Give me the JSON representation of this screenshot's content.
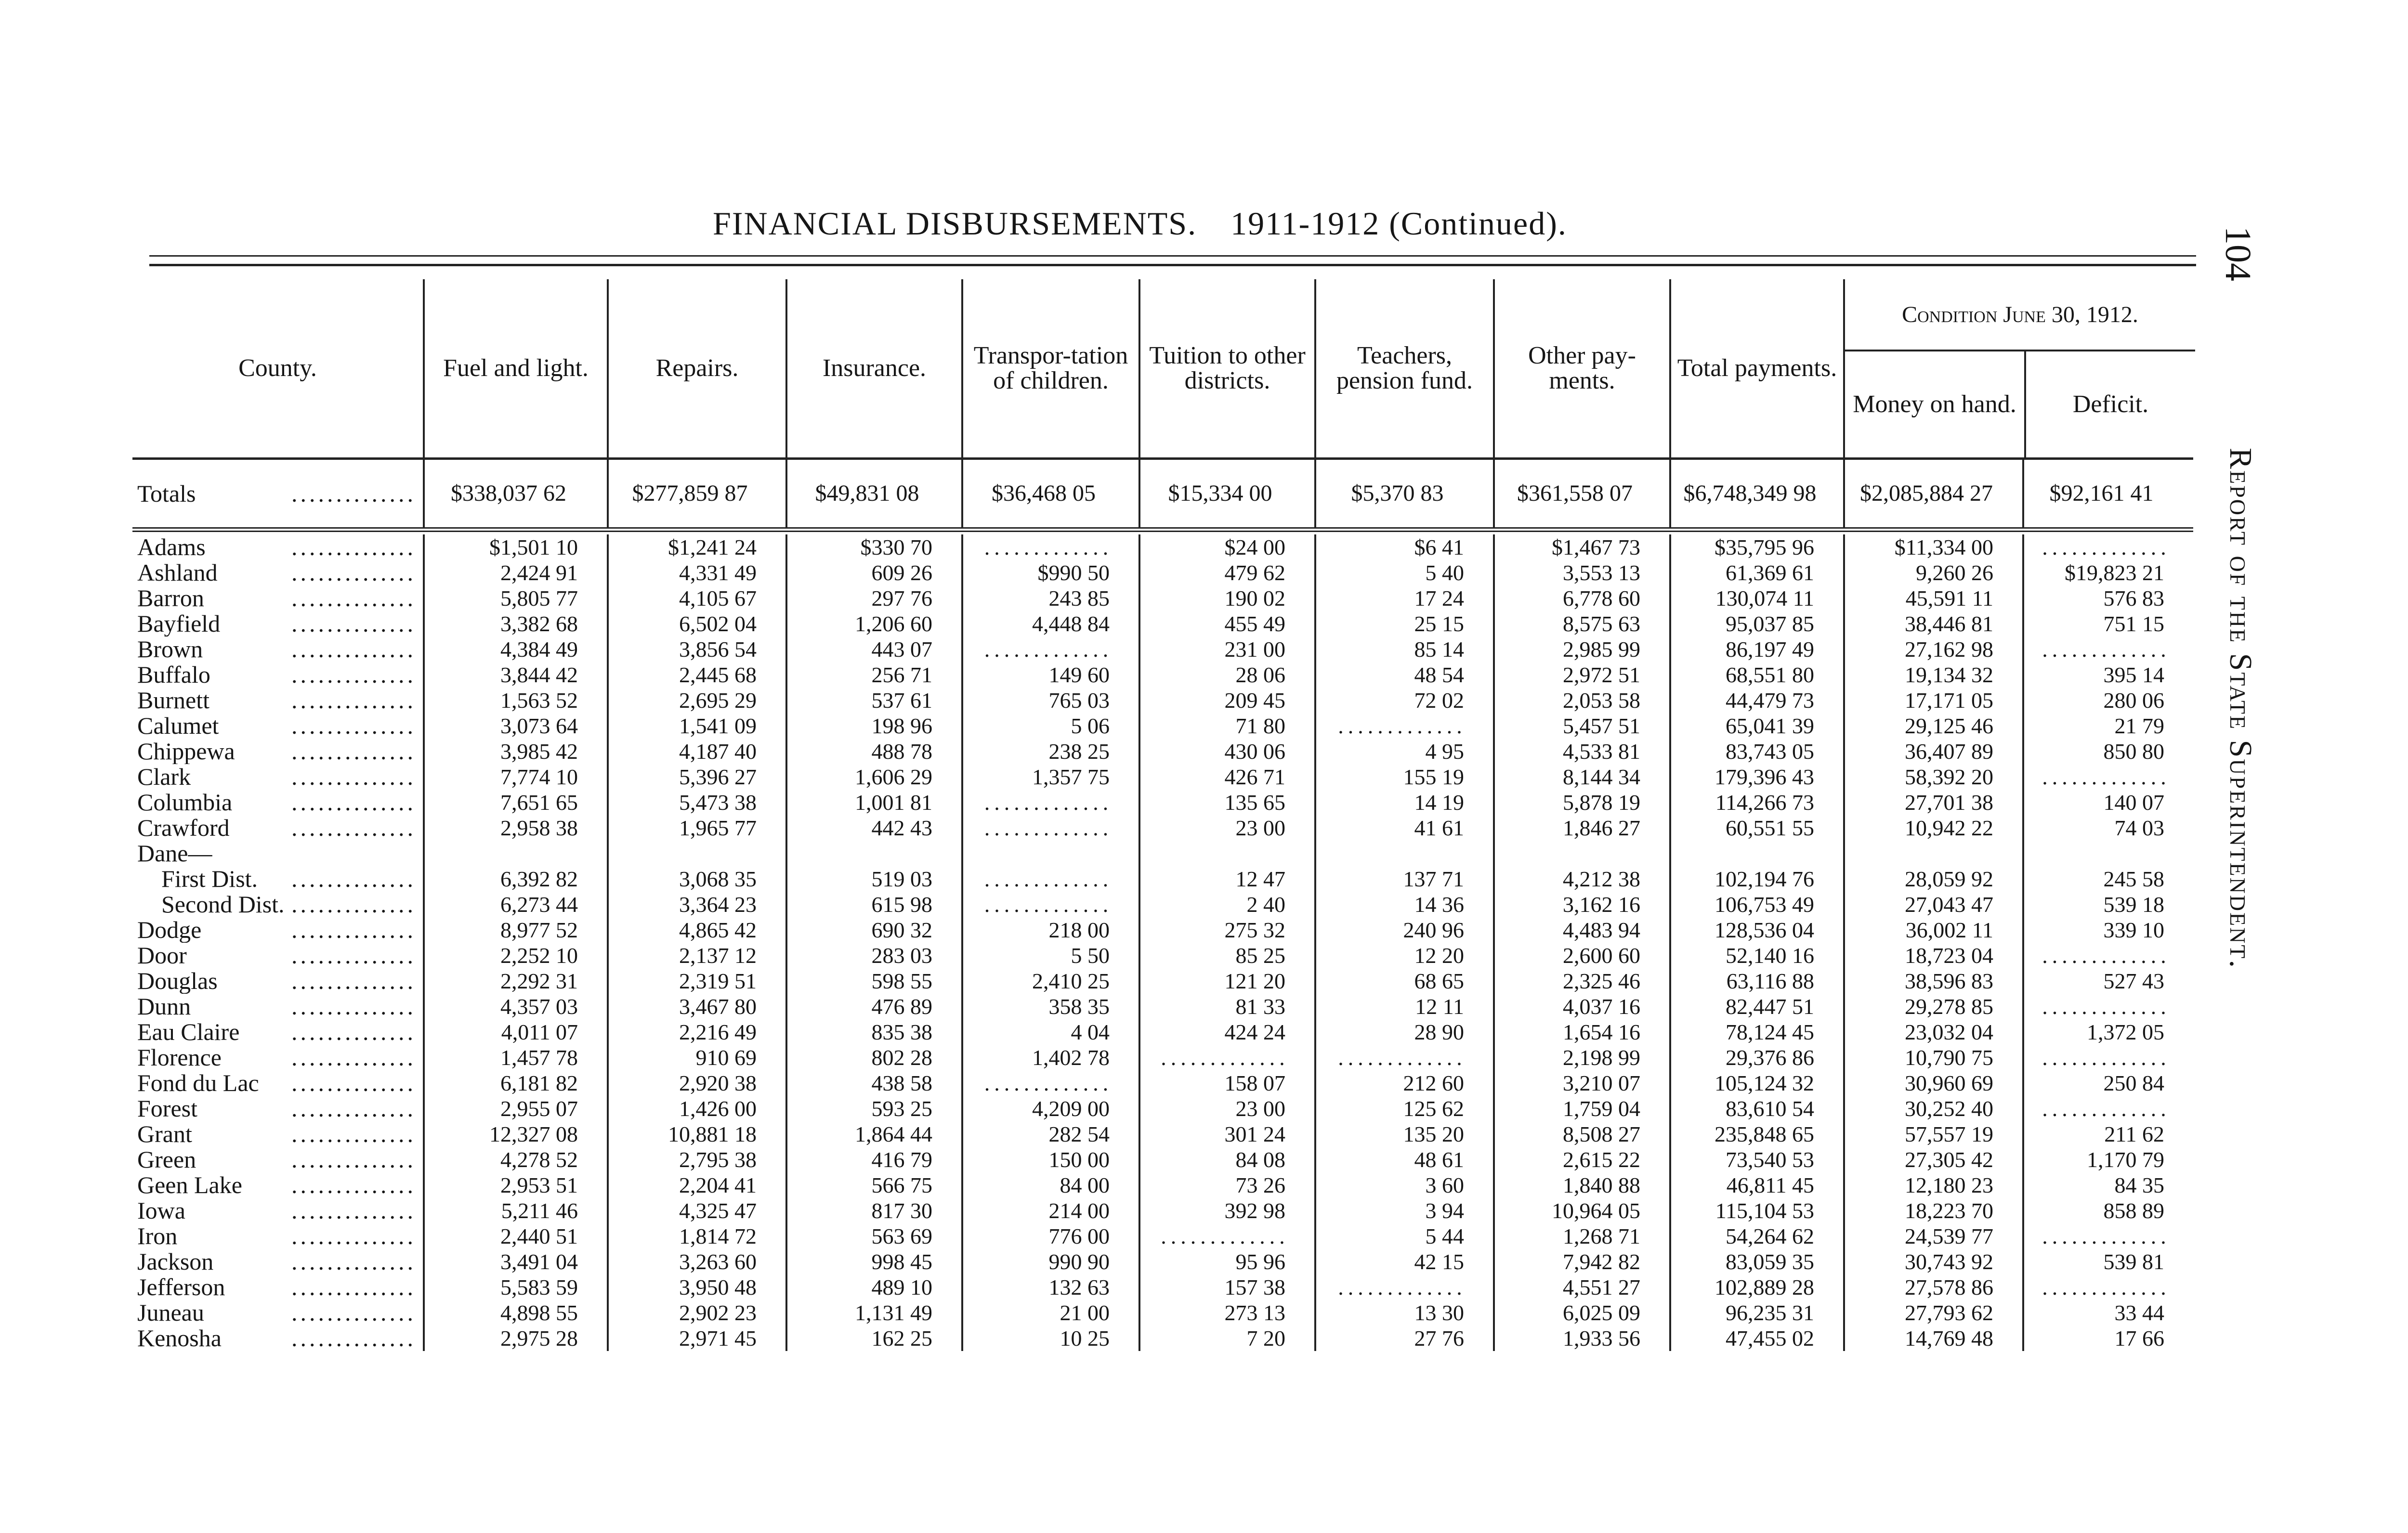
{
  "page": {
    "title_main": "FINANCIAL DISBURSEMENTS.",
    "title_year": "1911-1912 (Continued).",
    "page_number": "104",
    "running_head": "Report of the State Superintendent."
  },
  "headers": {
    "county": "County.",
    "columns": [
      "Fuel and light.",
      "Repairs.",
      "Insurance.",
      "Transpor-tation of children.",
      "Tuition to other districts.",
      "Teachers, pension fund.",
      "Other pay-ments.",
      "Total payments."
    ],
    "condition_group": "Condition June 30, 1912.",
    "condition_columns": [
      "Money on hand.",
      "Deficit."
    ]
  },
  "totals": {
    "label": "Totals",
    "values": [
      "$338,037 62",
      "$277,859 87",
      "$49,831 08",
      "$36,468 05",
      "$15,334 00",
      "$5,370 83",
      "$361,558 07",
      "$6,748,349 98",
      "$2,085,884 27",
      "$92,161 41"
    ]
  },
  "rows": [
    {
      "county": "Adams",
      "values": [
        "$1,501 10",
        "$1,241 24",
        "$330 70",
        "",
        "$24 00",
        "$6 41",
        "$1,467 73",
        "$35,795 96",
        "$11,334 00",
        ""
      ]
    },
    {
      "county": "Ashland",
      "values": [
        "2,424 91",
        "4,331 49",
        "609 26",
        "$990 50",
        "479 62",
        "5 40",
        "3,553 13",
        "61,369 61",
        "9,260 26",
        "$19,823 21"
      ]
    },
    {
      "county": "Barron",
      "values": [
        "5,805 77",
        "4,105 67",
        "297 76",
        "243 85",
        "190 02",
        "17 24",
        "6,778 60",
        "130,074 11",
        "45,591 11",
        "576 83"
      ]
    },
    {
      "county": "Bayfield",
      "values": [
        "3,382 68",
        "6,502 04",
        "1,206 60",
        "4,448 84",
        "455 49",
        "25 15",
        "8,575 63",
        "95,037 85",
        "38,446 81",
        "751 15"
      ]
    },
    {
      "county": "Brown",
      "values": [
        "4,384 49",
        "3,856 54",
        "443 07",
        "",
        "231 00",
        "85 14",
        "2,985 99",
        "86,197 49",
        "27,162 98",
        ""
      ]
    },
    {
      "county": "Buffalo",
      "values": [
        "3,844 42",
        "2,445 68",
        "256 71",
        "149 60",
        "28 06",
        "48 54",
        "2,972 51",
        "68,551 80",
        "19,134 32",
        "395 14"
      ]
    },
    {
      "county": "Burnett",
      "values": [
        "1,563 52",
        "2,695 29",
        "537 61",
        "765 03",
        "209 45",
        "72 02",
        "2,053 58",
        "44,479 73",
        "17,171 05",
        "280 06"
      ]
    },
    {
      "county": "Calumet",
      "values": [
        "3,073 64",
        "1,541 09",
        "198 96",
        "5 06",
        "71 80",
        "",
        "5,457 51",
        "65,041 39",
        "29,125 46",
        "21 79"
      ]
    },
    {
      "county": "Chippewa",
      "values": [
        "3,985 42",
        "4,187 40",
        "488 78",
        "238 25",
        "430 06",
        "4 95",
        "4,533 81",
        "83,743 05",
        "36,407 89",
        "850 80"
      ]
    },
    {
      "county": "Clark",
      "values": [
        "7,774 10",
        "5,396 27",
        "1,606 29",
        "1,357 75",
        "426 71",
        "155 19",
        "8,144 34",
        "179,396 43",
        "58,392 20",
        ""
      ]
    },
    {
      "county": "Columbia",
      "values": [
        "7,651 65",
        "5,473 38",
        "1,001 81",
        "",
        "135 65",
        "14 19",
        "5,878 19",
        "114,266 73",
        "27,701 38",
        "140 07"
      ]
    },
    {
      "county": "Crawford",
      "values": [
        "2,958 38",
        "1,965 77",
        "442 43",
        "",
        "23 00",
        "41 61",
        "1,846 27",
        "60,551 55",
        "10,942 22",
        "74 03"
      ]
    },
    {
      "county": "Dane—",
      "group": true,
      "values": []
    },
    {
      "county": "First Dist.",
      "indent": true,
      "values": [
        "6,392 82",
        "3,068 35",
        "519 03",
        "",
        "12 47",
        "137 71",
        "4,212 38",
        "102,194 76",
        "28,059 92",
        "245 58"
      ]
    },
    {
      "county": "Second Dist.",
      "indent": true,
      "values": [
        "6,273 44",
        "3,364 23",
        "615 98",
        "",
        "2 40",
        "14 36",
        "3,162 16",
        "106,753 49",
        "27,043 47",
        "539 18"
      ]
    },
    {
      "county": "Dodge",
      "values": [
        "8,977 52",
        "4,865 42",
        "690 32",
        "218 00",
        "275 32",
        "240 96",
        "4,483 94",
        "128,536 04",
        "36,002 11",
        "339 10"
      ]
    },
    {
      "county": "Door",
      "values": [
        "2,252 10",
        "2,137 12",
        "283 03",
        "5 50",
        "85 25",
        "12 20",
        "2,600 60",
        "52,140 16",
        "18,723 04",
        ""
      ]
    },
    {
      "county": "Douglas",
      "values": [
        "2,292 31",
        "2,319 51",
        "598 55",
        "2,410 25",
        "121 20",
        "68 65",
        "2,325 46",
        "63,116 88",
        "38,596 83",
        "527 43"
      ]
    },
    {
      "county": "Dunn",
      "values": [
        "4,357 03",
        "3,467 80",
        "476 89",
        "358 35",
        "81 33",
        "12 11",
        "4,037 16",
        "82,447 51",
        "29,278 85",
        ""
      ]
    },
    {
      "county": "Eau Claire",
      "values": [
        "4,011 07",
        "2,216 49",
        "835 38",
        "4 04",
        "424 24",
        "28 90",
        "1,654 16",
        "78,124 45",
        "23,032 04",
        "1,372 05"
      ]
    },
    {
      "county": "Florence",
      "values": [
        "1,457 78",
        "910 69",
        "802 28",
        "1,402 78",
        "",
        "",
        "2,198 99",
        "29,376 86",
        "10,790 75",
        ""
      ]
    },
    {
      "county": "Fond du Lac",
      "values": [
        "6,181 82",
        "2,920 38",
        "438 58",
        "",
        "158 07",
        "212 60",
        "3,210 07",
        "105,124 32",
        "30,960 69",
        "250 84"
      ]
    },
    {
      "county": "Forest",
      "values": [
        "2,955 07",
        "1,426 00",
        "593 25",
        "4,209 00",
        "23 00",
        "125 62",
        "1,759 04",
        "83,610 54",
        "30,252 40",
        ""
      ]
    },
    {
      "county": "Grant",
      "values": [
        "12,327 08",
        "10,881 18",
        "1,864 44",
        "282 54",
        "301 24",
        "135 20",
        "8,508 27",
        "235,848 65",
        "57,557 19",
        "211 62"
      ]
    },
    {
      "county": "Green",
      "values": [
        "4,278 52",
        "2,795 38",
        "416 79",
        "150 00",
        "84 08",
        "48 61",
        "2,615 22",
        "73,540 53",
        "27,305 42",
        "1,170 79"
      ]
    },
    {
      "county": "Geen Lake",
      "values": [
        "2,953 51",
        "2,204 41",
        "566 75",
        "84 00",
        "73 26",
        "3 60",
        "1,840 88",
        "46,811 45",
        "12,180 23",
        "84 35"
      ]
    },
    {
      "county": "Iowa",
      "values": [
        "5,211 46",
        "4,325 47",
        "817 30",
        "214 00",
        "392 98",
        "3 94",
        "10,964 05",
        "115,104 53",
        "18,223 70",
        "858 89"
      ]
    },
    {
      "county": "Iron",
      "values": [
        "2,440 51",
        "1,814 72",
        "563 69",
        "776 00",
        "",
        "5 44",
        "1,268 71",
        "54,264 62",
        "24,539 77",
        ""
      ]
    },
    {
      "county": "Jackson",
      "values": [
        "3,491 04",
        "3,263 60",
        "998 45",
        "990 90",
        "95 96",
        "42 15",
        "7,942 82",
        "83,059 35",
        "30,743 92",
        "539 81"
      ]
    },
    {
      "county": "Jefferson",
      "values": [
        "5,583 59",
        "3,950 48",
        "489 10",
        "132 63",
        "157 38",
        "",
        "4,551 27",
        "102,889 28",
        "27,578 86",
        ""
      ]
    },
    {
      "county": "Juneau",
      "values": [
        "4,898 55",
        "2,902 23",
        "1,131 49",
        "21 00",
        "273 13",
        "13 30",
        "6,025 09",
        "96,235 31",
        "27,793 62",
        "33 44"
      ]
    },
    {
      "county": "Kenosha",
      "values": [
        "2,975 28",
        "2,971 45",
        "162 25",
        "10 25",
        "7 20",
        "27 76",
        "1,933 56",
        "47,455 02",
        "14,769 48",
        "17 66"
      ]
    }
  ]
}
